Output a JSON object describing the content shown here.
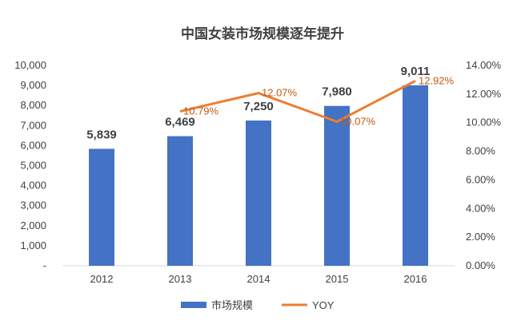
{
  "chart_data": {
    "type": "bar",
    "title": "中国女装市场规模逐年提升",
    "categories": [
      "2012",
      "2013",
      "2014",
      "2015",
      "2016"
    ],
    "series": [
      {
        "name": "市场规模",
        "type": "bar",
        "axis": "left",
        "values": [
          5839,
          6469,
          7250,
          7980,
          9011
        ],
        "labels": [
          "5,839",
          "6,469",
          "7,250",
          "7,980",
          "9,011"
        ]
      },
      {
        "name": "YOY",
        "type": "line",
        "axis": "right",
        "values": [
          null,
          10.79,
          12.07,
          10.07,
          12.92
        ],
        "labels": [
          "",
          "10.79%",
          "12.07%",
          "10.07%",
          "12.92%"
        ]
      }
    ],
    "ylim": [
      0,
      10000
    ],
    "y2lim": [
      0,
      14
    ],
    "yticks": [
      "-",
      "1,000",
      "2,000",
      "3,000",
      "4,000",
      "5,000",
      "6,000",
      "7,000",
      "8,000",
      "9,000",
      "10,000"
    ],
    "y2ticks": [
      "0.00%",
      "2.00%",
      "4.00%",
      "6.00%",
      "8.00%",
      "10.00%",
      "12.00%",
      "14.00%"
    ],
    "grid": false,
    "legend_position": "bottom",
    "colors": {
      "bar": "#4472C4",
      "line": "#ED7D31",
      "line_label": "#C55A11",
      "text": "#404040",
      "title": "#404040"
    }
  }
}
